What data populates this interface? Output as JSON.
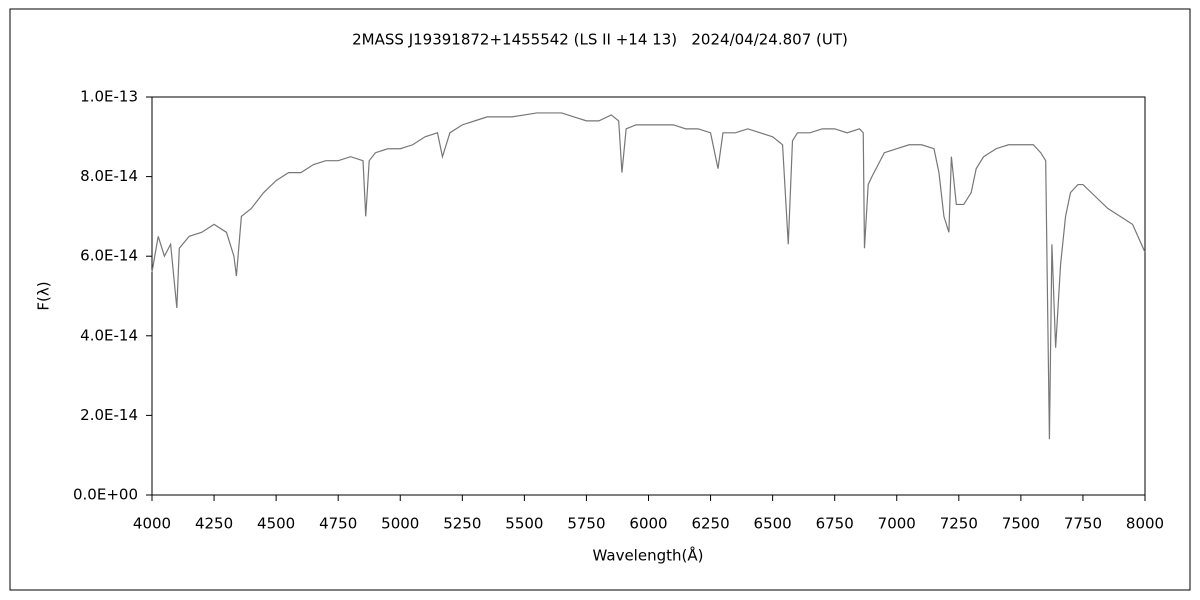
{
  "chart_data": {
    "type": "line",
    "title": "2MASS J19391872+1455542 (LS II +14 13)   2024/04/24.807 (UT)",
    "x_label": "Wavelength(Å)",
    "y_label": "F(λ)",
    "color": "#777777",
    "xlim": [
      4000,
      8000
    ],
    "xticks": [
      4000,
      4250,
      4500,
      4750,
      5000,
      5250,
      5500,
      5750,
      6000,
      6250,
      6500,
      6750,
      7000,
      7250,
      7500,
      7750,
      8000
    ],
    "ylim": [
      0,
      1e-13
    ],
    "yticks": [
      {
        "value": 0,
        "label": "0.0E+00"
      },
      {
        "value": 2e-14,
        "label": "2.0E-14"
      },
      {
        "value": 4e-14,
        "label": "4.0E-14"
      },
      {
        "value": 6e-14,
        "label": "6.0E-14"
      },
      {
        "value": 8e-14,
        "label": "8.0E-14"
      },
      {
        "value": 1e-13,
        "label": "1.0E-13"
      }
    ],
    "grid": false,
    "x": [
      4000,
      4025,
      4050,
      4075,
      4100,
      4110,
      4150,
      4200,
      4250,
      4300,
      4330,
      4340,
      4360,
      4400,
      4450,
      4500,
      4550,
      4600,
      4650,
      4700,
      4750,
      4800,
      4850,
      4861,
      4875,
      4900,
      4950,
      5000,
      5050,
      5100,
      5150,
      5170,
      5200,
      5250,
      5300,
      5350,
      5400,
      5450,
      5500,
      5550,
      5600,
      5650,
      5700,
      5750,
      5800,
      5850,
      5880,
      5893,
      5910,
      5950,
      6000,
      6050,
      6100,
      6150,
      6200,
      6250,
      6280,
      6300,
      6350,
      6400,
      6450,
      6500,
      6540,
      6563,
      6580,
      6600,
      6650,
      6700,
      6750,
      6800,
      6850,
      6865,
      6870,
      6885,
      6900,
      6950,
      7000,
      7050,
      7100,
      7150,
      7170,
      7190,
      7210,
      7220,
      7240,
      7270,
      7300,
      7320,
      7350,
      7400,
      7450,
      7500,
      7550,
      7580,
      7600,
      7605,
      7615,
      7625,
      7640,
      7660,
      7680,
      7700,
      7730,
      7750,
      7800,
      7850,
      7900,
      7950,
      8000
    ],
    "values": [
      5.6e-14,
      6.5e-14,
      6e-14,
      6.3e-14,
      4.7e-14,
      6.2e-14,
      6.5e-14,
      6.6e-14,
      6.8e-14,
      6.6e-14,
      6e-14,
      5.5e-14,
      7e-14,
      7.2e-14,
      7.6e-14,
      7.9e-14,
      8.1e-14,
      8.1e-14,
      8.3e-14,
      8.4e-14,
      8.4e-14,
      8.5e-14,
      8.4e-14,
      7e-14,
      8.4e-14,
      8.6e-14,
      8.7e-14,
      8.7e-14,
      8.8e-14,
      9e-14,
      9.1e-14,
      8.5e-14,
      9.1e-14,
      9.3e-14,
      9.4e-14,
      9.5e-14,
      9.5e-14,
      9.5e-14,
      9.55e-14,
      9.6e-14,
      9.6e-14,
      9.6e-14,
      9.5e-14,
      9.4e-14,
      9.4e-14,
      9.55e-14,
      9.4e-14,
      8.1e-14,
      9.2e-14,
      9.3e-14,
      9.3e-14,
      9.3e-14,
      9.3e-14,
      9.2e-14,
      9.2e-14,
      9.1e-14,
      8.2e-14,
      9.1e-14,
      9.1e-14,
      9.2e-14,
      9.1e-14,
      9e-14,
      8.8e-14,
      6.3e-14,
      8.9e-14,
      9.1e-14,
      9.1e-14,
      9.2e-14,
      9.2e-14,
      9.1e-14,
      9.2e-14,
      9.1e-14,
      6.2e-14,
      7.8e-14,
      8e-14,
      8.6e-14,
      8.7e-14,
      8.8e-14,
      8.8e-14,
      8.7e-14,
      8.1e-14,
      7e-14,
      6.6e-14,
      8.5e-14,
      7.3e-14,
      7.3e-14,
      7.6e-14,
      8.2e-14,
      8.5e-14,
      8.7e-14,
      8.8e-14,
      8.8e-14,
      8.8e-14,
      8.6e-14,
      8.4e-14,
      6e-14,
      1.4e-14,
      6.3e-14,
      3.7e-14,
      5.8e-14,
      7e-14,
      7.6e-14,
      7.8e-14,
      7.8e-14,
      7.5e-14,
      7.2e-14,
      7e-14,
      6.8e-14,
      6.1e-14
    ]
  }
}
